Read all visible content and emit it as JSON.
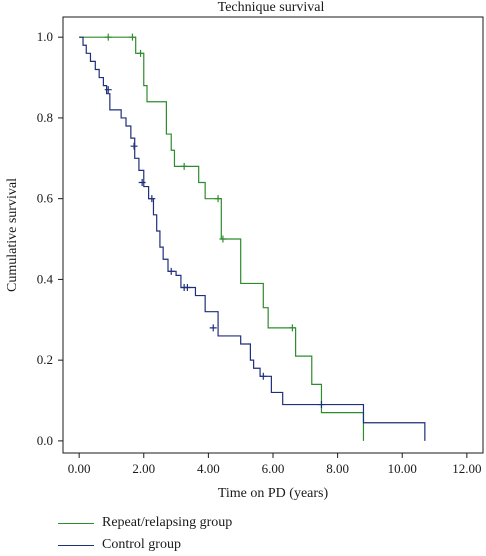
{
  "chart_data": {
    "type": "line",
    "title": "Technique survival",
    "xlabel": "Time on PD (years)",
    "ylabel": "Cumulative survival",
    "xlim": [
      -0.5,
      12.5
    ],
    "ylim": [
      -0.03,
      1.05
    ],
    "x_ticks": [
      "0.00",
      "2.00",
      "4.00",
      "6.00",
      "8.00",
      "10.00",
      "12.00"
    ],
    "y_ticks": [
      "0.0",
      "0.2",
      "0.4",
      "0.6",
      "0.8",
      "1.0"
    ],
    "grid": false,
    "legend_position": "bottom-left",
    "series": [
      {
        "name": "Repeat/relapsing group",
        "color": "#2e8b2e",
        "step": "post",
        "x": [
          0.0,
          1.75,
          2.0,
          2.1,
          2.7,
          2.85,
          2.95,
          3.7,
          3.9,
          4.4,
          5.0,
          5.7,
          5.85,
          6.7,
          7.2,
          7.5,
          8.8
        ],
        "y": [
          1.0,
          0.96,
          0.88,
          0.84,
          0.76,
          0.72,
          0.68,
          0.64,
          0.6,
          0.5,
          0.39,
          0.33,
          0.28,
          0.21,
          0.14,
          0.07,
          0.0
        ],
        "censored_x": [
          0.9,
          1.65,
          1.9,
          3.25,
          4.3,
          4.45,
          6.6
        ],
        "censored_y": [
          1.0,
          1.0,
          0.96,
          0.68,
          0.6,
          0.5,
          0.28
        ]
      },
      {
        "name": "Control group",
        "color": "#1f2f7a",
        "step": "post",
        "x": [
          0.0,
          0.12,
          0.22,
          0.35,
          0.5,
          0.62,
          0.75,
          0.85,
          0.95,
          1.05,
          1.3,
          1.45,
          1.6,
          1.72,
          1.85,
          2.0,
          2.15,
          2.3,
          2.4,
          2.5,
          2.6,
          2.75,
          3.0,
          3.15,
          3.6,
          3.9,
          4.3,
          5.0,
          5.3,
          5.4,
          5.6,
          5.95,
          6.3,
          8.8,
          10.7
        ],
        "y": [
          1.0,
          0.98,
          0.96,
          0.94,
          0.92,
          0.9,
          0.88,
          0.86,
          0.82,
          0.82,
          0.8,
          0.78,
          0.75,
          0.7,
          0.67,
          0.63,
          0.6,
          0.56,
          0.52,
          0.48,
          0.45,
          0.42,
          0.41,
          0.38,
          0.36,
          0.32,
          0.26,
          0.24,
          0.2,
          0.18,
          0.16,
          0.12,
          0.09,
          0.045,
          0.0
        ],
        "censored_x": [
          0.9,
          1.7,
          1.95,
          2.25,
          2.85,
          3.25,
          3.35,
          4.15,
          5.7,
          7.5
        ],
        "censored_y": [
          0.87,
          0.73,
          0.64,
          0.6,
          0.42,
          0.38,
          0.38,
          0.28,
          0.16,
          0.09
        ]
      }
    ]
  }
}
